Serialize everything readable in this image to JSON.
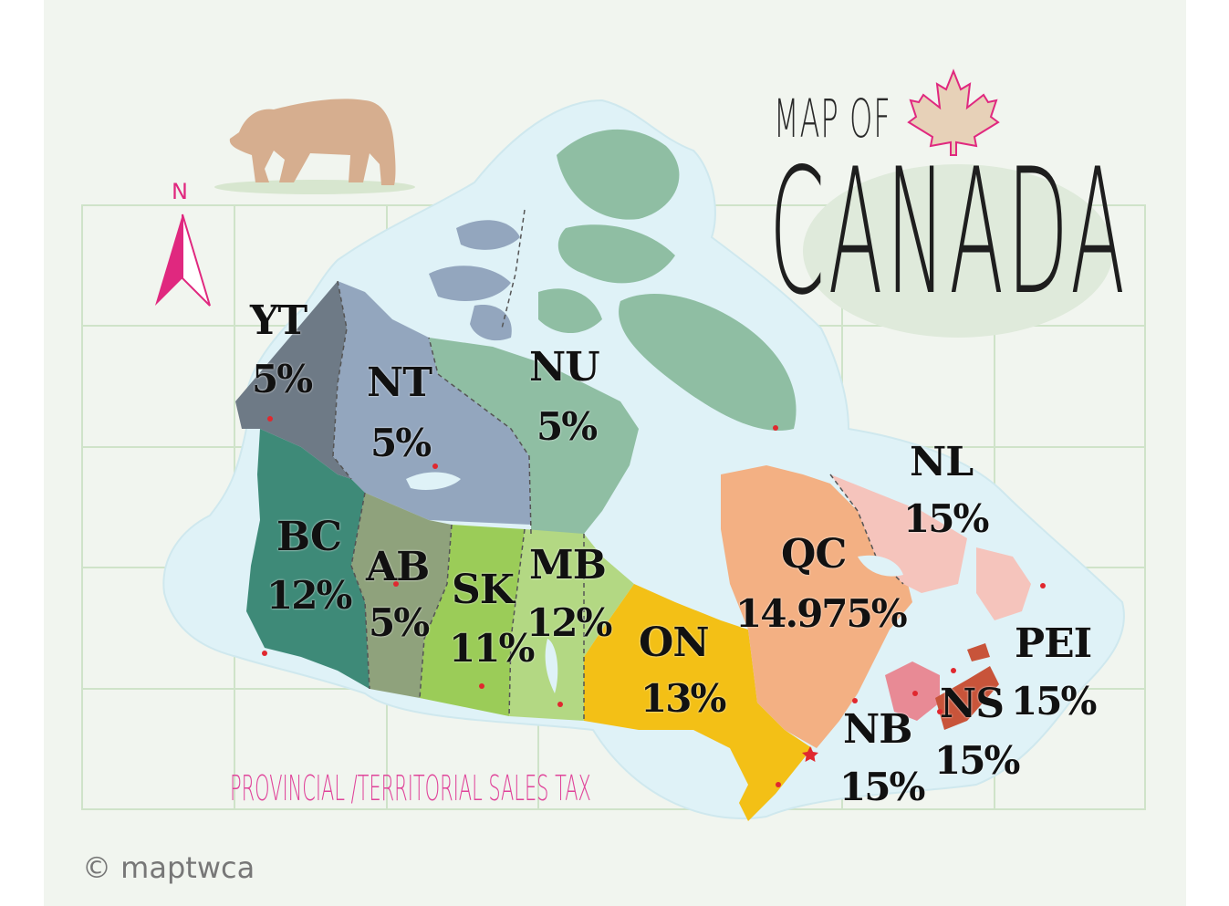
{
  "title": {
    "line1": "MAP OF",
    "line2": "CANADA"
  },
  "compass": {
    "label": "N",
    "color": "#e0287f"
  },
  "caption": "PROVINCIAL /TERRITORIAL SALES TAX",
  "credit": "© maptwca",
  "colors": {
    "YT": "#6e7a86",
    "NT": "#93a6be",
    "NU": "#8fbea3",
    "BC": "#3e8a78",
    "AB": "#8fa27c",
    "SK": "#9bcc58",
    "MB": "#b3d883",
    "ON": "#f3c016",
    "QC": "#f3b083",
    "NL": "#f5c4bc",
    "NB": "#e88a95",
    "NS": "#c8543a",
    "PEI": "#c8543a",
    "water": "#dff2f7",
    "accent": "#e0287f"
  },
  "regions": [
    {
      "code": "YT",
      "rate": "5%"
    },
    {
      "code": "NT",
      "rate": "5%"
    },
    {
      "code": "NU",
      "rate": "5%"
    },
    {
      "code": "BC",
      "rate": "12%"
    },
    {
      "code": "AB",
      "rate": "5%"
    },
    {
      "code": "SK",
      "rate": "11%"
    },
    {
      "code": "MB",
      "rate": "12%"
    },
    {
      "code": "ON",
      "rate": "13%"
    },
    {
      "code": "QC",
      "rate": "14.975%"
    },
    {
      "code": "NL",
      "rate": "15%"
    },
    {
      "code": "NB",
      "rate": "15%"
    },
    {
      "code": "NS",
      "rate": "15%"
    },
    {
      "code": "PEI",
      "rate": "15%"
    }
  ]
}
